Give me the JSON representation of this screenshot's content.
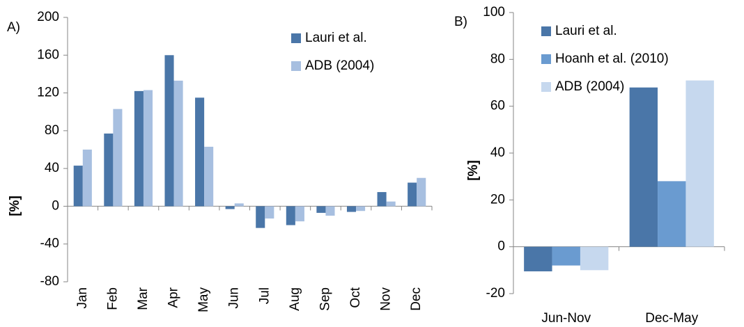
{
  "chart_data": [
    {
      "type": "bar",
      "panel_label": "A)",
      "y_label": "[%]",
      "categories": [
        "Jan",
        "Feb",
        "Mar",
        "Apr",
        "May",
        "Jun",
        "Jul",
        "Aug",
        "Sep",
        "Oct",
        "Nov",
        "Dec"
      ],
      "series": [
        {
          "name": "Lauri et al.",
          "color": "#4a76a8",
          "values": [
            43,
            77,
            122,
            160,
            115,
            -3,
            -23,
            -20,
            -7,
            -6,
            15,
            25
          ]
        },
        {
          "name": "ADB (2004)",
          "color": "#a7bfe0",
          "values": [
            60,
            103,
            123,
            133,
            63,
            3,
            -13,
            -16,
            -10,
            -5,
            5,
            30
          ]
        }
      ],
      "ylim": [
        -80,
        200
      ],
      "yticks": [
        -80,
        -40,
        0,
        40,
        80,
        120,
        160,
        200
      ]
    },
    {
      "type": "bar",
      "panel_label": "B)",
      "y_label": "[%]",
      "categories": [
        "Jun-Nov",
        "Dec-May"
      ],
      "series": [
        {
          "name": "Lauri et al.",
          "color": "#4a76a8",
          "values": [
            -10.5,
            68
          ]
        },
        {
          "name": "Hoanh et al. (2010)",
          "color": "#6a9bd0",
          "values": [
            -8,
            28
          ]
        },
        {
          "name": "ADB (2004)",
          "color": "#c6d8ee",
          "values": [
            -10,
            71
          ]
        }
      ],
      "ylim": [
        -20,
        100
      ],
      "yticks": [
        -20,
        0,
        20,
        40,
        60,
        80,
        100
      ]
    }
  ]
}
